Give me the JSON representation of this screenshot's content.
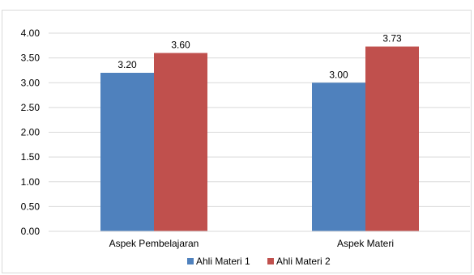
{
  "chart_data": {
    "type": "bar",
    "categories": [
      "Aspek Pembelajaran",
      "Aspek Materi"
    ],
    "series": [
      {
        "name": "Ahli Materi 1",
        "values": [
          3.2,
          3.0
        ],
        "color": "#4f81bd"
      },
      {
        "name": "Ahli Materi 2",
        "values": [
          3.6,
          3.73
        ],
        "color": "#c0504d"
      }
    ],
    "data_labels": [
      [
        "3.20",
        "3.00"
      ],
      [
        "3.60",
        "3.73"
      ]
    ],
    "ylim": [
      0,
      4
    ],
    "yticks": [
      "0.00",
      "0.50",
      "1.00",
      "1.50",
      "2.00",
      "2.50",
      "3.00",
      "3.50",
      "4.00"
    ],
    "grid": true,
    "legend_position": "bottom",
    "title": "",
    "xlabel": "",
    "ylabel": ""
  }
}
